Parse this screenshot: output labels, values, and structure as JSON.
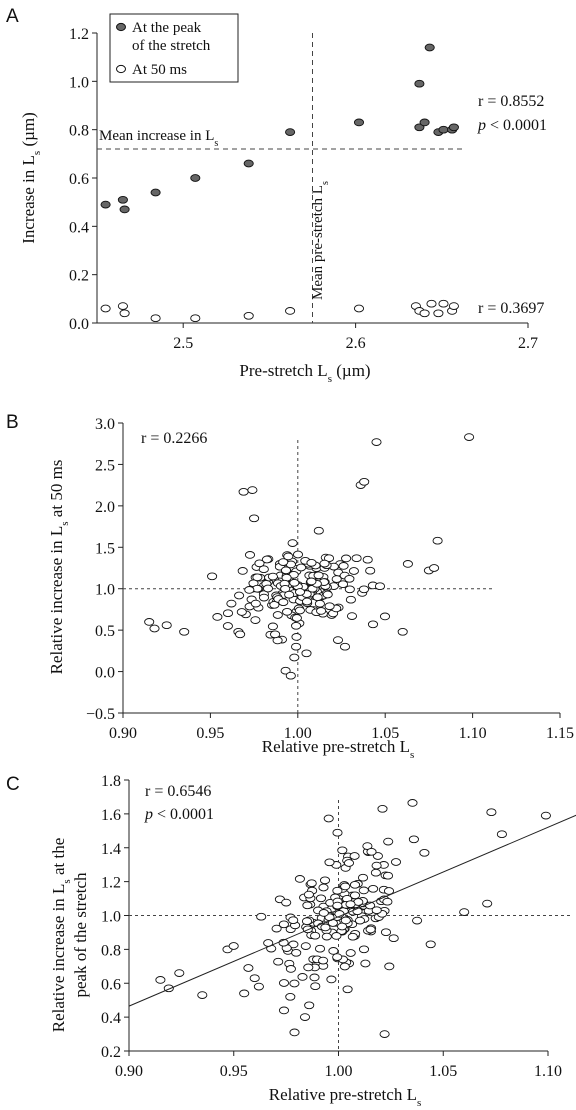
{
  "chart_data": [
    {
      "panel_label": "A",
      "type": "scatter",
      "xlabel": "Pre-stretch L",
      "xlabel_sub": "s",
      "xlabel_tail": " (µm)",
      "ylabel": "Increase in L",
      "ylabel_sub": "s",
      "ylabel_tail": " (µm)",
      "xlim": [
        2.45,
        2.7
      ],
      "ylim": [
        0,
        1.2
      ],
      "xticks": [
        2.5,
        2.6,
        2.7
      ],
      "yticks": [
        0.0,
        0.2,
        0.4,
        0.6,
        0.8,
        1.0,
        1.2
      ],
      "legend": [
        {
          "label": "At the peak",
          "label2": "of the stretch",
          "marker": "filled"
        },
        {
          "label": "At 50 ms",
          "label2": "",
          "marker": "open"
        }
      ],
      "annotations": {
        "r_peak": "r = 0.8552",
        "p_peak_italic": "p",
        "p_peak_rest": " < 0.0001",
        "r_50": "r = 0.3697",
        "mean_increase": "Mean increase in L",
        "mean_increase_sub": "s",
        "mean_pre": "Mean pre-stretch L",
        "mean_pre_sub": "s"
      },
      "mean_lines": {
        "x": 2.575,
        "y": 0.72
      },
      "series": [
        {
          "name": "At the peak of the stretch",
          "marker": "filled",
          "x": [
            2.455,
            2.465,
            2.466,
            2.484,
            2.507,
            2.538,
            2.562,
            2.602,
            2.637,
            2.637,
            2.64,
            2.643,
            2.648,
            2.651,
            2.656,
            2.657
          ],
          "y": [
            0.49,
            0.51,
            0.47,
            0.54,
            0.6,
            0.66,
            0.79,
            0.83,
            0.99,
            0.81,
            0.83,
            1.14,
            0.79,
            0.8,
            0.8,
            0.81
          ]
        },
        {
          "name": "At 50 ms",
          "marker": "open",
          "x": [
            2.455,
            2.465,
            2.466,
            2.484,
            2.507,
            2.538,
            2.562,
            2.602,
            2.635,
            2.637,
            2.64,
            2.644,
            2.648,
            2.651,
            2.656,
            2.657
          ],
          "y": [
            0.06,
            0.07,
            0.04,
            0.02,
            0.02,
            0.03,
            0.05,
            0.06,
            0.07,
            0.05,
            0.04,
            0.08,
            0.04,
            0.08,
            0.05,
            0.07
          ]
        }
      ]
    },
    {
      "panel_label": "B",
      "type": "scatter",
      "xlabel": "Relative pre-stretch L",
      "xlabel_sub": "s",
      "ylabel": "Relative increase in L",
      "ylabel_sub": "s",
      "ylabel_tail": " at 50 ms",
      "xlim": [
        0.9,
        1.15
      ],
      "ylim": [
        -0.5,
        3.0
      ],
      "xticks": [
        0.9,
        0.95,
        1.0,
        1.05,
        1.1,
        1.15
      ],
      "yticks": [
        -0.5,
        0.0,
        0.5,
        1.0,
        1.5,
        2.0,
        2.5,
        3.0
      ],
      "r_text": "r = 0.2266",
      "ref_lines": {
        "x": 1.0,
        "y": 1.0
      },
      "outliers": {
        "x": [
          0.915,
          0.918,
          0.925,
          0.935,
          0.951,
          0.954,
          0.96,
          0.962,
          0.966,
          0.967,
          0.969,
          0.974,
          0.975,
          0.976,
          0.987,
          0.993,
          0.996,
          0.997,
          0.998,
          0.999,
          1.005,
          1.012,
          1.023,
          1.027,
          1.031,
          1.036,
          1.038,
          1.04,
          1.043,
          1.045,
          1.047,
          1.06,
          1.063,
          1.075,
          1.078,
          1.08,
          1.098
        ],
        "y": [
          0.6,
          0.52,
          0.56,
          0.48,
          1.15,
          0.66,
          0.55,
          0.82,
          0.48,
          0.45,
          2.17,
          2.19,
          1.85,
          0.82,
          0.45,
          0.01,
          -0.05,
          1.55,
          0.17,
          0.3,
          0.22,
          1.7,
          0.38,
          0.3,
          0.67,
          2.25,
          2.29,
          1.35,
          0.57,
          2.77,
          1.03,
          0.48,
          1.3,
          1.22,
          1.25,
          1.58,
          2.83
        ]
      },
      "cluster": {
        "n": 180,
        "x_center": 1.0,
        "x_spread": 0.016,
        "y_center": 1.0,
        "y_spread": 0.22,
        "seed": 7
      }
    },
    {
      "panel_label": "C",
      "type": "scatter",
      "xlabel": "Relative pre-stretch L",
      "xlabel_sub": "s",
      "ylabel": "Relative increase in L",
      "ylabel_sub": "s",
      "ylabel_tail": " at the",
      "ylabel2": "peak of the stretch",
      "xlim": [
        0.9,
        1.1
      ],
      "ylim": [
        0.2,
        1.8
      ],
      "xticks": [
        0.9,
        0.95,
        1.0,
        1.05,
        1.1
      ],
      "yticks": [
        0.2,
        0.4,
        0.6,
        0.8,
        1.0,
        1.2,
        1.4,
        1.6,
        1.8
      ],
      "r_text": "r = 0.6546",
      "p_italic": "p",
      "p_rest": " < 0.0001",
      "ref_lines": {
        "x": 1.0,
        "y": 1.0
      },
      "fit_line": {
        "x": [
          0.9,
          1.115
        ],
        "y": [
          0.465,
          1.6
        ]
      },
      "outliers": {
        "x": [
          0.915,
          0.919,
          0.924,
          0.935,
          0.947,
          0.95,
          0.955,
          0.957,
          0.96,
          0.962,
          0.974,
          0.977,
          0.979,
          0.984,
          0.986,
          1.005,
          1.021,
          1.022,
          1.036,
          1.041,
          1.044,
          1.06,
          1.071,
          1.073,
          1.078,
          1.099
        ],
        "y": [
          0.62,
          0.57,
          0.66,
          0.53,
          0.8,
          0.82,
          0.54,
          0.69,
          0.63,
          0.58,
          0.44,
          0.52,
          0.31,
          0.4,
          0.47,
          1.31,
          1.63,
          0.3,
          1.45,
          1.37,
          0.83,
          1.02,
          1.07,
          1.61,
          1.48,
          1.59
        ]
      },
      "cluster": {
        "n": 180,
        "x_center": 1.0,
        "x_spread": 0.016,
        "y_center": 1.0,
        "y_spread": 0.18,
        "seed": 13,
        "slope": 5.3
      }
    }
  ]
}
